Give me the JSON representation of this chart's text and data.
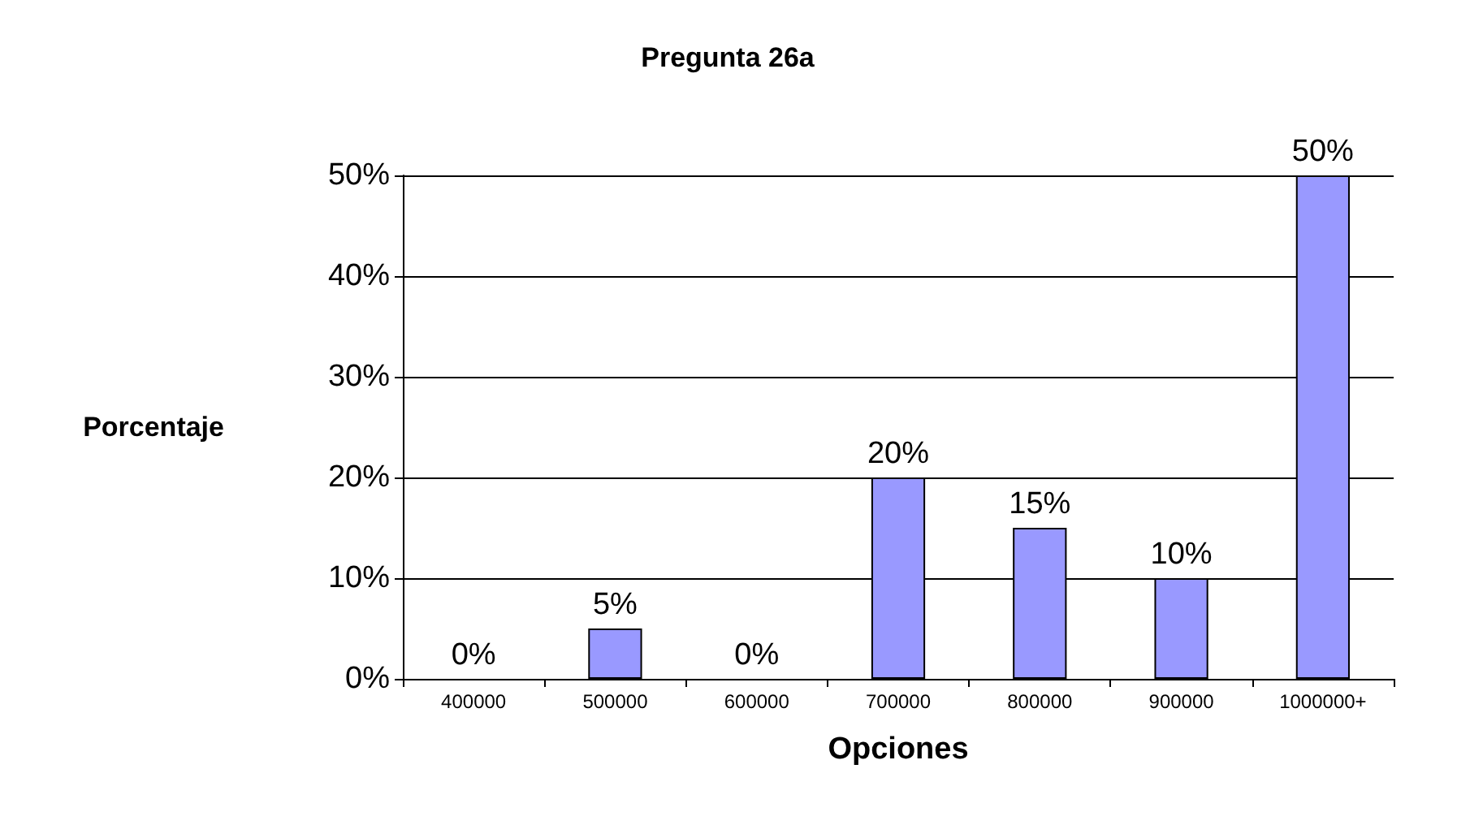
{
  "chart_data": {
    "type": "bar",
    "title": "Pregunta 26a",
    "xlabel": "Opciones",
    "ylabel": "Porcentaje",
    "categories": [
      "400000",
      "500000",
      "600000",
      "700000",
      "800000",
      "900000",
      "1000000+"
    ],
    "values": [
      0,
      5,
      0,
      20,
      15,
      10,
      50
    ],
    "value_labels": [
      "0%",
      "5%",
      "0%",
      "20%",
      "15%",
      "10%",
      "50%"
    ],
    "color": "#9999ff",
    "ylim": [
      0,
      50
    ],
    "yticks": [
      {
        "value": 0,
        "label": "0%"
      },
      {
        "value": 10,
        "label": "10%"
      },
      {
        "value": 20,
        "label": "20%"
      },
      {
        "value": 30,
        "label": "30%"
      },
      {
        "value": 40,
        "label": "40%"
      },
      {
        "value": 50,
        "label": "50%"
      }
    ],
    "grid": "y"
  }
}
